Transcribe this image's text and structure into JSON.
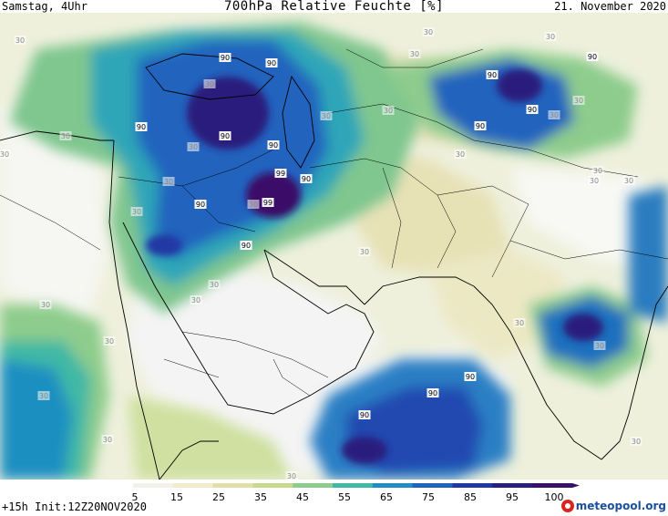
{
  "header": {
    "left": "Samstag, 4Uhr",
    "title": "700hPa Relative Feuchte [%]",
    "right": "21. November 2020"
  },
  "footer": {
    "run": "+15h Init:12Z20NOV2020",
    "brand": "meteopool.org"
  },
  "colorbar": {
    "tick_labels": [
      "5",
      "15",
      "25",
      "35",
      "45",
      "55",
      "65",
      "75",
      "85",
      "95",
      "100"
    ],
    "colors": [
      "#ffffff",
      "#f2f2ea",
      "#f0eccd",
      "#e1deaa",
      "#c7d98d",
      "#8dcc8c",
      "#3fb8a6",
      "#1f8fc1",
      "#2164be",
      "#2038a4",
      "#2a1f7c",
      "#3a1168"
    ]
  },
  "map_labels": [
    {
      "text": "30"
    },
    {
      "text": "30"
    },
    {
      "text": "30"
    },
    {
      "text": "30"
    },
    {
      "text": "30"
    },
    {
      "text": "90"
    },
    {
      "text": "90"
    },
    {
      "text": "30"
    },
    {
      "text": "30"
    },
    {
      "text": "90"
    },
    {
      "text": "90"
    },
    {
      "text": "30"
    },
    {
      "text": "90"
    },
    {
      "text": "30"
    },
    {
      "text": "90"
    },
    {
      "text": "30"
    },
    {
      "text": "90"
    },
    {
      "text": "30"
    },
    {
      "text": "90"
    },
    {
      "text": "30"
    },
    {
      "text": "90"
    },
    {
      "text": "90"
    },
    {
      "text": "99"
    },
    {
      "text": "90"
    },
    {
      "text": "30"
    },
    {
      "text": "30"
    },
    {
      "text": "30"
    },
    {
      "text": "30"
    },
    {
      "text": "90"
    },
    {
      "text": "30"
    },
    {
      "text": "99"
    },
    {
      "text": "30"
    },
    {
      "text": "30"
    },
    {
      "text": "30"
    },
    {
      "text": "30"
    },
    {
      "text": "30"
    },
    {
      "text": "30"
    },
    {
      "text": "30"
    },
    {
      "text": "30"
    },
    {
      "text": "90"
    },
    {
      "text": "90"
    },
    {
      "text": "90"
    },
    {
      "text": "30"
    },
    {
      "text": "30"
    },
    {
      "text": "30"
    },
    {
      "text": "30"
    },
    {
      "text": "30"
    }
  ]
}
